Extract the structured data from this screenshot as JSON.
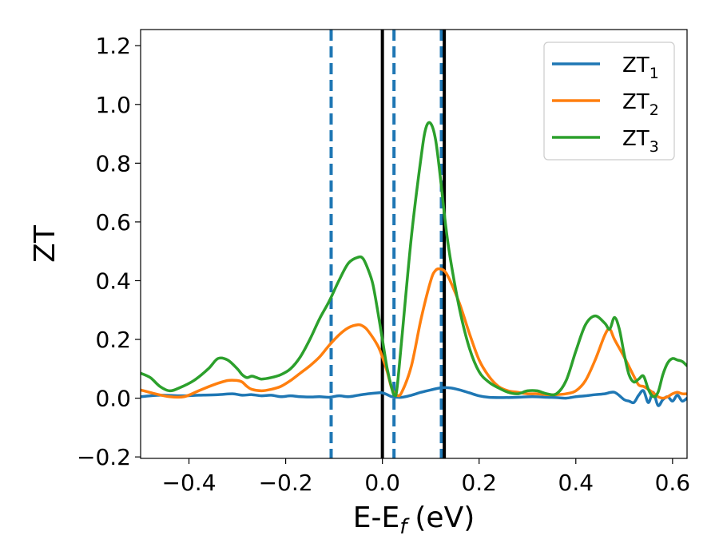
{
  "chart_data": {
    "type": "line",
    "xlabel": "E-E",
    "xlabel_sub": "f",
    "xlabel_unit": "(eV)",
    "ylabel": "ZT",
    "xlim": [
      -0.5,
      0.63
    ],
    "ylim": [
      -0.205,
      1.255
    ],
    "xticks": [
      -0.4,
      -0.2,
      0.0,
      0.2,
      0.4,
      0.6
    ],
    "xtick_labels": [
      "−0.4",
      "−0.2",
      "0.0",
      "0.2",
      "0.4",
      "0.6"
    ],
    "yticks": [
      -0.2,
      0.0,
      0.2,
      0.4,
      0.6,
      0.8,
      1.0,
      1.2
    ],
    "ytick_labels": [
      "−0.2",
      "0.0",
      "0.2",
      "0.4",
      "0.6",
      "0.8",
      "1.0",
      "1.2"
    ],
    "grid": false,
    "legend_position": "top-right",
    "vlines_solid": [
      0.0,
      0.128
    ],
    "vlines_dashed": [
      -0.106,
      0.024,
      0.122
    ],
    "vline_solid_color": "#000000",
    "vline_dashed_color": "#1f77b4",
    "series": [
      {
        "name": "ZT",
        "subscript": "1",
        "color": "#1f77b4",
        "x": [
          -0.5,
          -0.46,
          -0.42,
          -0.38,
          -0.34,
          -0.31,
          -0.29,
          -0.27,
          -0.25,
          -0.23,
          -0.21,
          -0.19,
          -0.17,
          -0.15,
          -0.13,
          -0.11,
          -0.09,
          -0.07,
          -0.05,
          -0.03,
          -0.01,
          0.0,
          0.01,
          0.02,
          0.04,
          0.06,
          0.08,
          0.1,
          0.12,
          0.14,
          0.16,
          0.18,
          0.2,
          0.22,
          0.25,
          0.28,
          0.31,
          0.34,
          0.36,
          0.38,
          0.4,
          0.42,
          0.44,
          0.46,
          0.48,
          0.5,
          0.51,
          0.52,
          0.53,
          0.54,
          0.55,
          0.56,
          0.57,
          0.58,
          0.59,
          0.6,
          0.61,
          0.62,
          0.63
        ],
        "y": [
          0.005,
          0.01,
          0.008,
          0.01,
          0.012,
          0.015,
          0.01,
          0.012,
          0.008,
          0.01,
          0.005,
          0.008,
          0.005,
          0.004,
          0.005,
          0.003,
          0.008,
          0.005,
          0.01,
          0.015,
          0.018,
          0.018,
          0.012,
          0.005,
          0.003,
          0.01,
          0.02,
          0.028,
          0.035,
          0.035,
          0.028,
          0.018,
          0.008,
          0.003,
          0.002,
          0.003,
          0.005,
          0.003,
          0.002,
          0.0,
          0.005,
          0.008,
          0.012,
          0.015,
          0.02,
          -0.005,
          -0.01,
          -0.015,
          0.01,
          0.025,
          -0.015,
          0.02,
          -0.025,
          -0.005,
          0.005,
          -0.01,
          0.01,
          -0.01,
          0.0
        ]
      },
      {
        "name": "ZT",
        "subscript": "2",
        "color": "#ff7f0e",
        "x": [
          -0.5,
          -0.47,
          -0.44,
          -0.41,
          -0.38,
          -0.35,
          -0.32,
          -0.3,
          -0.29,
          -0.28,
          -0.27,
          -0.25,
          -0.23,
          -0.21,
          -0.19,
          -0.17,
          -0.15,
          -0.13,
          -0.11,
          -0.09,
          -0.07,
          -0.05,
          -0.04,
          -0.03,
          -0.01,
          0.0,
          0.01,
          0.02,
          0.03,
          0.04,
          0.06,
          0.08,
          0.1,
          0.11,
          0.12,
          0.13,
          0.14,
          0.16,
          0.18,
          0.2,
          0.22,
          0.24,
          0.26,
          0.28,
          0.3,
          0.32,
          0.34,
          0.36,
          0.38,
          0.4,
          0.42,
          0.44,
          0.46,
          0.47,
          0.48,
          0.5,
          0.52,
          0.53,
          0.54,
          0.55,
          0.56,
          0.57,
          0.58,
          0.59,
          0.6,
          0.61,
          0.62,
          0.63
        ],
        "y": [
          0.028,
          0.015,
          0.005,
          0.005,
          0.025,
          0.045,
          0.06,
          0.06,
          0.055,
          0.04,
          0.03,
          0.025,
          0.03,
          0.04,
          0.06,
          0.085,
          0.11,
          0.14,
          0.18,
          0.215,
          0.24,
          0.25,
          0.245,
          0.23,
          0.18,
          0.14,
          0.09,
          0.03,
          0.01,
          0.02,
          0.11,
          0.27,
          0.4,
          0.435,
          0.44,
          0.43,
          0.4,
          0.32,
          0.22,
          0.13,
          0.075,
          0.04,
          0.025,
          0.02,
          0.015,
          0.015,
          0.012,
          0.012,
          0.015,
          0.025,
          0.06,
          0.13,
          0.215,
          0.235,
          0.2,
          0.14,
          0.075,
          0.045,
          0.04,
          0.03,
          0.018,
          0.005,
          0.0,
          0.005,
          0.015,
          0.02,
          0.015,
          0.015
        ]
      },
      {
        "name": "ZT",
        "subscript": "3",
        "color": "#2ca02c",
        "x": [
          -0.5,
          -0.48,
          -0.46,
          -0.44,
          -0.42,
          -0.39,
          -0.36,
          -0.34,
          -0.32,
          -0.3,
          -0.29,
          -0.28,
          -0.27,
          -0.26,
          -0.25,
          -0.23,
          -0.21,
          -0.19,
          -0.17,
          -0.15,
          -0.13,
          -0.11,
          -0.09,
          -0.07,
          -0.05,
          -0.04,
          -0.03,
          -0.02,
          -0.01,
          0.0,
          0.01,
          0.02,
          0.025,
          0.03,
          0.04,
          0.06,
          0.08,
          0.09,
          0.1,
          0.11,
          0.12,
          0.13,
          0.14,
          0.16,
          0.18,
          0.2,
          0.22,
          0.24,
          0.26,
          0.28,
          0.3,
          0.32,
          0.34,
          0.36,
          0.38,
          0.4,
          0.42,
          0.44,
          0.46,
          0.47,
          0.48,
          0.49,
          0.5,
          0.51,
          0.52,
          0.53,
          0.54,
          0.55,
          0.56,
          0.57,
          0.58,
          0.59,
          0.6,
          0.61,
          0.62,
          0.63
        ],
        "y": [
          0.085,
          0.07,
          0.04,
          0.025,
          0.035,
          0.06,
          0.1,
          0.135,
          0.13,
          0.1,
          0.08,
          0.07,
          0.075,
          0.07,
          0.065,
          0.07,
          0.08,
          0.1,
          0.14,
          0.2,
          0.27,
          0.33,
          0.4,
          0.46,
          0.48,
          0.475,
          0.44,
          0.39,
          0.3,
          0.2,
          0.1,
          0.03,
          0.01,
          0.03,
          0.2,
          0.55,
          0.82,
          0.92,
          0.935,
          0.88,
          0.75,
          0.6,
          0.48,
          0.3,
          0.17,
          0.09,
          0.055,
          0.035,
          0.02,
          0.015,
          0.025,
          0.025,
          0.015,
          0.015,
          0.06,
          0.16,
          0.25,
          0.28,
          0.255,
          0.235,
          0.275,
          0.235,
          0.15,
          0.08,
          0.055,
          0.065,
          0.075,
          0.03,
          0.005,
          0.02,
          0.08,
          0.12,
          0.135,
          0.13,
          0.125,
          0.11
        ]
      }
    ]
  }
}
